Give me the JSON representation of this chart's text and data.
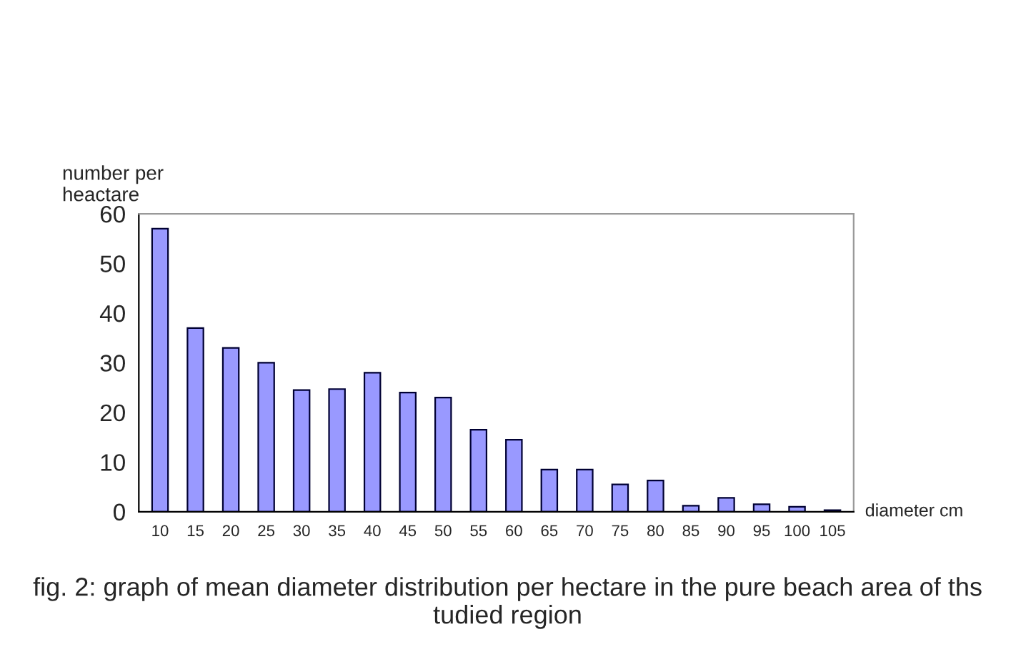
{
  "chart_data": {
    "type": "bar",
    "title": "fig. 2: graph of mean diameter distribution per hectare in the pure beach area of ths tudied region",
    "ylabel": "number per\nheactare",
    "xlabel": "diameter cm",
    "categories": [
      "10",
      "15",
      "20",
      "25",
      "30",
      "35",
      "40",
      "45",
      "50",
      "55",
      "60",
      "65",
      "70",
      "75",
      "80",
      "85",
      "90",
      "95",
      "100",
      "105"
    ],
    "values": [
      57,
      37,
      33,
      30,
      24.5,
      24.7,
      28,
      24,
      23,
      16.5,
      14.5,
      8.5,
      8.5,
      5.5,
      6.3,
      1.2,
      2.8,
      1.5,
      1,
      0.3
    ],
    "color": "#9999ff",
    "ylim": [
      0,
      60
    ],
    "yticks": [
      0,
      10,
      20,
      30,
      40,
      50,
      60
    ],
    "grid": false,
    "legend": false
  }
}
